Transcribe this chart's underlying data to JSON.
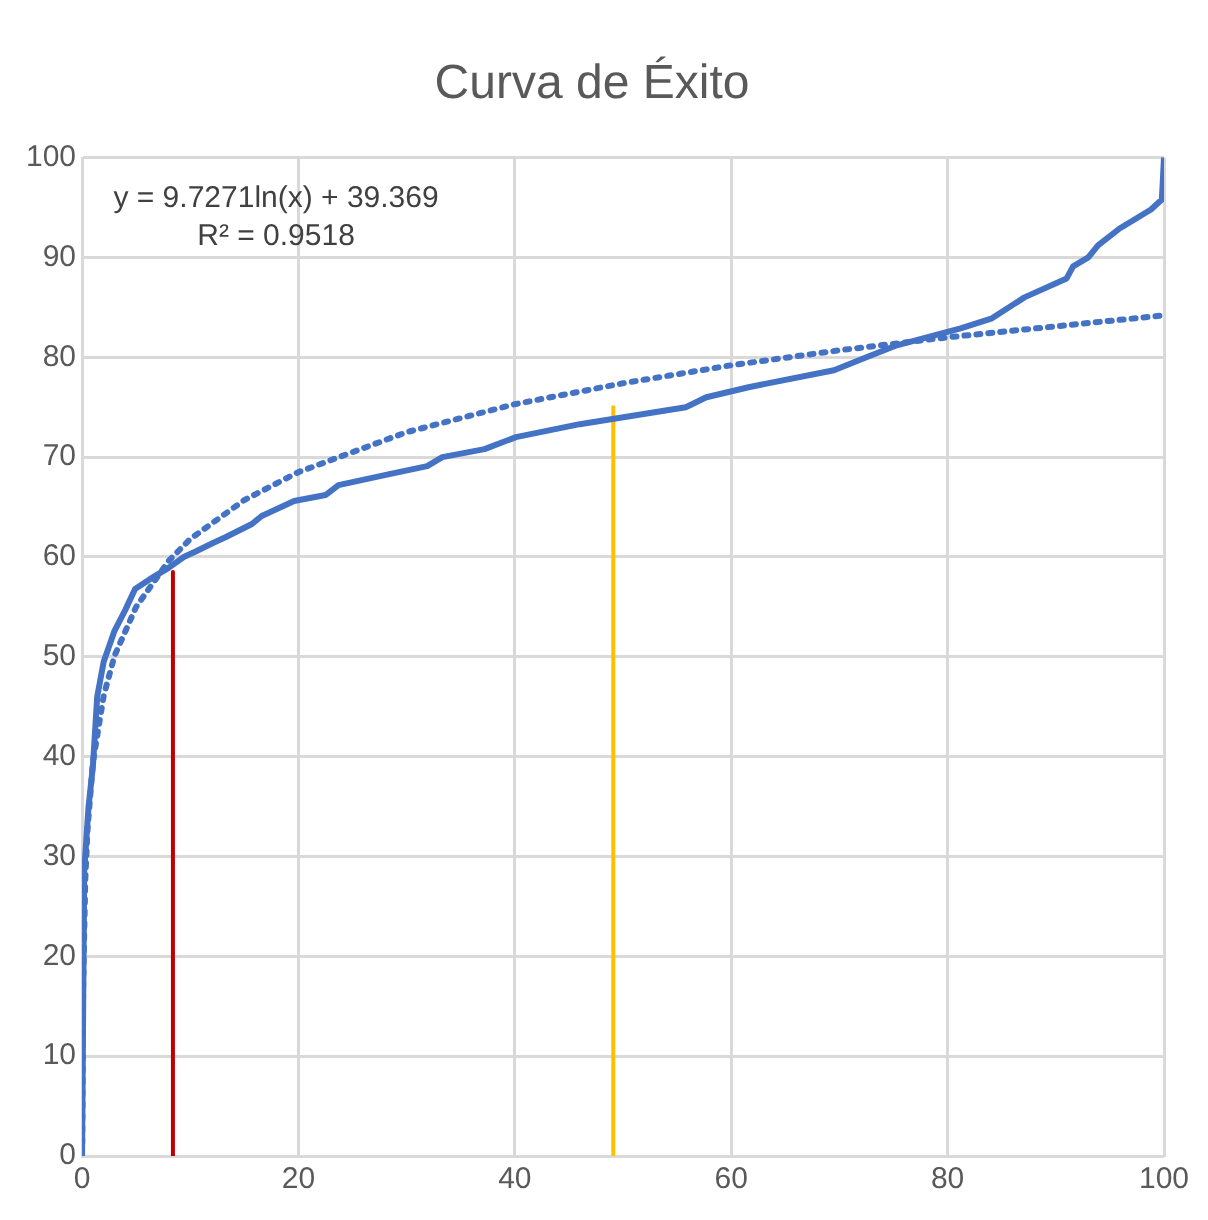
{
  "chart_data": {
    "type": "line",
    "title": "Curva de Éxito",
    "xlim": [
      0,
      100
    ],
    "xticks": [
      0,
      20,
      40,
      60,
      80,
      100
    ],
    "ylim": [
      0,
      100
    ],
    "yticks": [
      0,
      10,
      20,
      30,
      40,
      50,
      60,
      70,
      80,
      90,
      100
    ],
    "grid": true,
    "legend": false,
    "marker": "none",
    "annotations": [
      "y = 9.7271ln(x) + 39.369",
      "R² = 0.9518"
    ],
    "series": [
      {
        "color": "#4472c4",
        "line_style": "solid",
        "x": [
          0,
          0.2,
          0.6,
          1,
          1.4,
          2,
          3,
          4,
          4.9,
          6.3,
          8,
          9.4,
          10.4,
          12.1,
          13.3,
          15.7,
          16.6,
          19.6,
          22.5,
          23.7,
          28.4,
          31.9,
          33.3,
          37.2,
          40.1,
          46,
          55.8,
          57.7,
          61.6,
          69.5,
          71.8,
          75.3,
          81.2,
          84.1,
          87.1,
          91,
          91.6,
          93,
          93.9,
          95.9,
          98.8,
          99.8,
          100
        ],
        "values": [
          0,
          28.6,
          35,
          39,
          46,
          49.5,
          52.6,
          54.7,
          56.8,
          57.8,
          58.9,
          60,
          60.5,
          61.4,
          62,
          63.3,
          64.1,
          65.6,
          66.2,
          67.2,
          68.3,
          69.1,
          70,
          70.8,
          72,
          73.3,
          75,
          76,
          77,
          78.7,
          79.7,
          81.2,
          82.9,
          83.9,
          86,
          87.9,
          89.1,
          90,
          91.2,
          92.9,
          94.8,
          95.8,
          100
        ]
      },
      {
        "type": "line",
        "color": "#4472c4",
        "line_style": "dotted",
        "x": [
          0.02,
          0.1,
          0.3,
          0.5,
          1,
          2,
          3,
          5,
          8,
          10,
          15,
          20,
          30,
          40,
          50,
          60,
          70,
          80,
          90,
          100
        ],
        "values": [
          1.3,
          17,
          27.7,
          32.6,
          39.4,
          46.1,
          50.1,
          55,
          59.6,
          61.8,
          65.7,
          68.5,
          72.5,
          75.3,
          77.4,
          79.2,
          80.7,
          82,
          83.1,
          84.2
        ]
      },
      {
        "type": "line",
        "color": "#c00000",
        "line_style": "solid",
        "x": [
          8.4,
          8.4
        ],
        "values": [
          0,
          58.5
        ]
      },
      {
        "type": "line",
        "color": "#ffc000",
        "line_style": "solid",
        "x": [
          49.1,
          49.1
        ],
        "values": [
          0,
          75
        ]
      }
    ]
  }
}
